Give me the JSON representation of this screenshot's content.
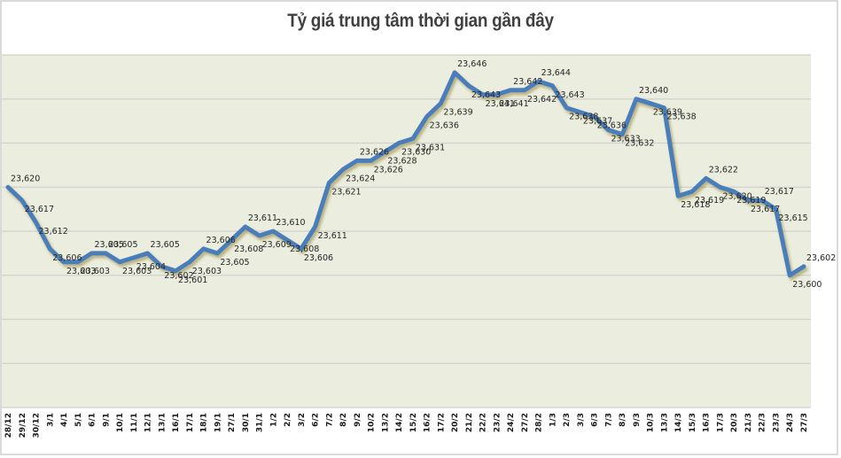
{
  "title": "Tỷ giá trung tâm thời gian gần đây",
  "colors": {
    "line": "#4a7ebb",
    "plot_background": "#ebeede",
    "gridline": "#d0d0d0",
    "label": "#262626"
  },
  "chart_data": {
    "type": "line",
    "title": "Tỷ giá trung tâm thời gian gần đây",
    "xlabel": "",
    "ylabel": "",
    "ylim": [
      23570,
      23650
    ],
    "grid": true,
    "legend": "none",
    "categories": [
      "28/12",
      "29/12",
      "30/12",
      "3/1",
      "4/1",
      "5/1",
      "6/1",
      "9/1",
      "10/1",
      "11/1",
      "12/1",
      "13/1",
      "16/1",
      "17/1",
      "18/1",
      "19/1",
      "27/1",
      "30/1",
      "31/1",
      "1/2",
      "2/2",
      "3/2",
      "6/2",
      "7/2",
      "8/2",
      "9/2",
      "10/2",
      "13/2",
      "14/2",
      "15/2",
      "16/2",
      "17/2",
      "20/2",
      "21/2",
      "22/2",
      "23/2",
      "24/2",
      "27/2",
      "28/2",
      "1/3",
      "2/3",
      "3/3",
      "6/3",
      "7/3",
      "8/3",
      "9/3",
      "10/3",
      "13/3",
      "14/3",
      "15/3",
      "16/3",
      "17/3",
      "20/3",
      "21/3",
      "22/3",
      "23/3",
      "24/3",
      "27/3"
    ],
    "series": [
      {
        "name": "Tỷ giá trung tâm",
        "values": [
          23620,
          23617,
          23612,
          23606,
          23603,
          23603,
          23605,
          23605,
          23603,
          23604,
          23605,
          23602,
          23601,
          23603,
          23606,
          23605,
          23608,
          23611,
          23609,
          23610,
          23608,
          23606,
          23611,
          23621,
          23624,
          23626,
          23626,
          23628,
          23630,
          23631,
          23636,
          23639,
          23646,
          23643,
          23641,
          23641,
          23642,
          23642,
          23644,
          23643,
          23638,
          23637,
          23636,
          23633,
          23632,
          23640,
          23639,
          23638,
          23618,
          23619,
          23622,
          23620,
          23619,
          23617,
          23617,
          23615,
          23600,
          23602
        ],
        "data_labels": [
          "23,620",
          "23,617",
          "23,612",
          "23,606",
          "23,603",
          "23,603",
          "23,605",
          "23,605",
          "23,603",
          "23,604",
          "23,605",
          "23,602",
          "23,601",
          "23,603",
          "23,606",
          "23,605",
          "23,608",
          "23,611",
          "23,609",
          "23,610",
          "23,608",
          "23,606",
          "23,611",
          "23,621",
          "23,624",
          "23,626",
          "23,626",
          "23,628",
          "23,630",
          "23,631",
          "23,636",
          "23,639",
          "23,646",
          "23,643",
          "23,641",
          "23,641",
          "23,642",
          "23,642",
          "23,644",
          "23,643",
          "23,638",
          "23,637",
          "23,636",
          "23,633",
          "23,632",
          "23,640",
          "23,639",
          "23,638",
          "23,618",
          "23,619",
          "23,622",
          "23,620",
          "23,619",
          "23,617",
          "23,617",
          "23,615",
          "23,600",
          "23,602"
        ]
      }
    ]
  }
}
